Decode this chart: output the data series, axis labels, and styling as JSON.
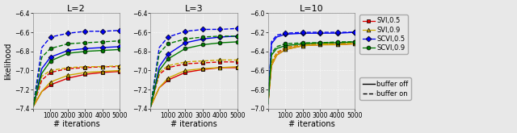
{
  "panels": [
    {
      "title": "L=2",
      "ylim": [
        -7.4,
        -6.4
      ],
      "yticks": [
        -7.4,
        -7.2,
        -7.0,
        -6.8,
        -6.6,
        -6.4
      ],
      "series": [
        {
          "name": "SVI_05_off",
          "x": [
            0,
            500,
            1000,
            2000,
            3000,
            4000,
            5000
          ],
          "y": [
            -7.38,
            -7.22,
            -7.15,
            -7.08,
            -7.04,
            -7.02,
            -7.01
          ],
          "color": "#dd0000",
          "marker": "s",
          "ls": "solid"
        },
        {
          "name": "SVI_05_on",
          "x": [
            0,
            500,
            1000,
            2000,
            3000,
            4000,
            5000
          ],
          "y": [
            -7.38,
            -7.1,
            -7.02,
            -6.98,
            -6.97,
            -6.96,
            -6.96
          ],
          "color": "#dd0000",
          "marker": "s",
          "ls": "dashed"
        },
        {
          "name": "SVI_09_off",
          "x": [
            0,
            500,
            1000,
            2000,
            3000,
            4000,
            5000
          ],
          "y": [
            -7.38,
            -7.22,
            -7.12,
            -7.05,
            -7.02,
            -7.01,
            -7.0
          ],
          "color": "#ccaa00",
          "marker": "^",
          "ls": "solid"
        },
        {
          "name": "SVI_09_on",
          "x": [
            0,
            500,
            1000,
            2000,
            3000,
            4000,
            5000
          ],
          "y": [
            -7.38,
            -7.06,
            -7.0,
            -6.97,
            -6.96,
            -6.96,
            -6.95
          ],
          "color": "#ccaa00",
          "marker": "^",
          "ls": "dashed"
        },
        {
          "name": "SCVI_05_off",
          "x": [
            0,
            500,
            1000,
            2000,
            3000,
            4000,
            5000
          ],
          "y": [
            -7.38,
            -6.98,
            -6.86,
            -6.79,
            -6.77,
            -6.76,
            -6.75
          ],
          "color": "#0000ee",
          "marker": "D",
          "ls": "solid"
        },
        {
          "name": "SCVI_05_on",
          "x": [
            0,
            500,
            1000,
            2000,
            3000,
            4000,
            5000
          ],
          "y": [
            -7.38,
            -6.76,
            -6.65,
            -6.61,
            -6.59,
            -6.59,
            -6.58
          ],
          "color": "#0000ee",
          "marker": "D",
          "ls": "dashed"
        },
        {
          "name": "SCVI_09_off",
          "x": [
            0,
            500,
            1000,
            2000,
            3000,
            4000,
            5000
          ],
          "y": [
            -7.38,
            -7.03,
            -6.9,
            -6.82,
            -6.8,
            -6.79,
            -6.78
          ],
          "color": "#007700",
          "marker": "o",
          "ls": "solid"
        },
        {
          "name": "SCVI_09_on",
          "x": [
            0,
            500,
            1000,
            2000,
            3000,
            4000,
            5000
          ],
          "y": [
            -7.38,
            -6.86,
            -6.77,
            -6.72,
            -6.71,
            -6.7,
            -6.69
          ],
          "color": "#007700",
          "marker": "o",
          "ls": "dashed"
        }
      ]
    },
    {
      "title": "L=3",
      "ylim": [
        -7.4,
        -6.4
      ],
      "yticks": [
        -7.4,
        -7.2,
        -7.0,
        -6.8,
        -6.6,
        -6.4
      ],
      "series": [
        {
          "name": "SVI_05_off",
          "x": [
            0,
            500,
            1000,
            2000,
            3000,
            4000,
            5000
          ],
          "y": [
            -7.38,
            -7.18,
            -7.1,
            -7.02,
            -6.99,
            -6.97,
            -6.97
          ],
          "color": "#dd0000",
          "marker": "s",
          "ls": "solid"
        },
        {
          "name": "SVI_05_on",
          "x": [
            0,
            500,
            1000,
            2000,
            3000,
            4000,
            5000
          ],
          "y": [
            -7.38,
            -7.04,
            -6.97,
            -6.93,
            -6.92,
            -6.91,
            -6.91
          ],
          "color": "#dd0000",
          "marker": "s",
          "ls": "dashed"
        },
        {
          "name": "SVI_09_off",
          "x": [
            0,
            500,
            1000,
            2000,
            3000,
            4000,
            5000
          ],
          "y": [
            -7.38,
            -7.18,
            -7.08,
            -7.0,
            -6.98,
            -6.97,
            -6.96
          ],
          "color": "#ccaa00",
          "marker": "^",
          "ls": "solid"
        },
        {
          "name": "SVI_09_on",
          "x": [
            0,
            500,
            1000,
            2000,
            3000,
            4000,
            5000
          ],
          "y": [
            -7.38,
            -7.02,
            -6.95,
            -6.91,
            -6.9,
            -6.89,
            -6.89
          ],
          "color": "#ccaa00",
          "marker": "^",
          "ls": "dashed"
        },
        {
          "name": "SCVI_05_off",
          "x": [
            0,
            500,
            1000,
            2000,
            3000,
            4000,
            5000
          ],
          "y": [
            -7.38,
            -6.96,
            -6.83,
            -6.71,
            -6.67,
            -6.65,
            -6.64
          ],
          "color": "#0000ee",
          "marker": "D",
          "ls": "solid"
        },
        {
          "name": "SCVI_05_on",
          "x": [
            0,
            500,
            1000,
            2000,
            3000,
            4000,
            5000
          ],
          "y": [
            -7.38,
            -6.76,
            -6.65,
            -6.59,
            -6.57,
            -6.57,
            -6.56
          ],
          "color": "#0000ee",
          "marker": "D",
          "ls": "dashed"
        },
        {
          "name": "SCVI_09_off",
          "x": [
            0,
            500,
            1000,
            2000,
            3000,
            4000,
            5000
          ],
          "y": [
            -7.38,
            -7.0,
            -6.88,
            -6.77,
            -6.73,
            -6.71,
            -6.7
          ],
          "color": "#007700",
          "marker": "o",
          "ls": "solid"
        },
        {
          "name": "SCVI_09_on",
          "x": [
            0,
            500,
            1000,
            2000,
            3000,
            4000,
            5000
          ],
          "y": [
            -7.38,
            -6.82,
            -6.72,
            -6.67,
            -6.65,
            -6.64,
            -6.64
          ],
          "color": "#007700",
          "marker": "o",
          "ls": "dashed"
        }
      ]
    },
    {
      "title": "L=10",
      "ylim": [
        -7.0,
        -6.0
      ],
      "yticks": [
        -7.0,
        -6.8,
        -6.6,
        -6.4,
        -6.2,
        -6.0
      ],
      "series": [
        {
          "name": "SVI_05_off",
          "x": [
            0,
            200,
            500,
            1000,
            2000,
            3000,
            4000,
            5000
          ],
          "y": [
            -6.95,
            -6.55,
            -6.44,
            -6.38,
            -6.34,
            -6.33,
            -6.33,
            -6.32
          ],
          "color": "#dd0000",
          "marker": "s",
          "ls": "solid"
        },
        {
          "name": "SVI_05_on",
          "x": [
            0,
            200,
            500,
            1000,
            2000,
            3000,
            4000,
            5000
          ],
          "y": [
            -6.95,
            -6.52,
            -6.42,
            -6.36,
            -6.33,
            -6.32,
            -6.32,
            -6.31
          ],
          "color": "#dd0000",
          "marker": "s",
          "ls": "dashed"
        },
        {
          "name": "SVI_09_off",
          "x": [
            0,
            200,
            500,
            1000,
            2000,
            3000,
            4000,
            5000
          ],
          "y": [
            -6.95,
            -6.55,
            -6.44,
            -6.38,
            -6.34,
            -6.33,
            -6.33,
            -6.32
          ],
          "color": "#ccaa00",
          "marker": "^",
          "ls": "solid"
        },
        {
          "name": "SVI_09_on",
          "x": [
            0,
            200,
            500,
            1000,
            2000,
            3000,
            4000,
            5000
          ],
          "y": [
            -6.95,
            -6.52,
            -6.41,
            -6.36,
            -6.33,
            -6.32,
            -6.32,
            -6.31
          ],
          "color": "#ccaa00",
          "marker": "^",
          "ls": "dashed"
        },
        {
          "name": "SCVI_05_off",
          "x": [
            0,
            200,
            500,
            1000,
            2000,
            3000,
            4000,
            5000
          ],
          "y": [
            -6.95,
            -6.32,
            -6.25,
            -6.22,
            -6.21,
            -6.21,
            -6.21,
            -6.2
          ],
          "color": "#0000ee",
          "marker": "D",
          "ls": "solid"
        },
        {
          "name": "SCVI_05_on",
          "x": [
            0,
            200,
            500,
            1000,
            2000,
            3000,
            4000,
            5000
          ],
          "y": [
            -6.95,
            -6.3,
            -6.23,
            -6.21,
            -6.2,
            -6.2,
            -6.2,
            -6.2
          ],
          "color": "#0000ee",
          "marker": "D",
          "ls": "dashed"
        },
        {
          "name": "SCVI_09_off",
          "x": [
            0,
            200,
            500,
            1000,
            2000,
            3000,
            4000,
            5000
          ],
          "y": [
            -6.95,
            -6.44,
            -6.37,
            -6.34,
            -6.32,
            -6.31,
            -6.31,
            -6.3
          ],
          "color": "#007700",
          "marker": "o",
          "ls": "solid"
        },
        {
          "name": "SCVI_09_on",
          "x": [
            0,
            200,
            500,
            1000,
            2000,
            3000,
            4000,
            5000
          ],
          "y": [
            -6.95,
            -6.42,
            -6.35,
            -6.32,
            -6.31,
            -6.31,
            -6.3,
            -6.3
          ],
          "color": "#007700",
          "marker": "o",
          "ls": "dashed"
        }
      ]
    }
  ],
  "xlabel": "# iterations",
  "ylabel": "likelihood",
  "legend_series": [
    {
      "label": "SVI,0.5",
      "color": "#dd0000",
      "marker": "s"
    },
    {
      "label": "SVI,0.9",
      "color": "#ccaa00",
      "marker": "^"
    },
    {
      "label": "SCVI,0.5",
      "color": "#0000ee",
      "marker": "D"
    },
    {
      "label": "SCVI,0.9",
      "color": "#007700",
      "marker": "o"
    }
  ],
  "legend_lines": [
    {
      "label": "buffer off",
      "ls": "solid"
    },
    {
      "label": "buffer on",
      "ls": "dashed"
    }
  ],
  "marker_x": [
    1000,
    2000,
    3000,
    4000,
    5000
  ],
  "xticks": [
    0,
    1000,
    2000,
    3000,
    4000,
    5000
  ],
  "bg_color": "#e8e8e8",
  "grid_color": "#ffffff",
  "axes_color": "#888888"
}
